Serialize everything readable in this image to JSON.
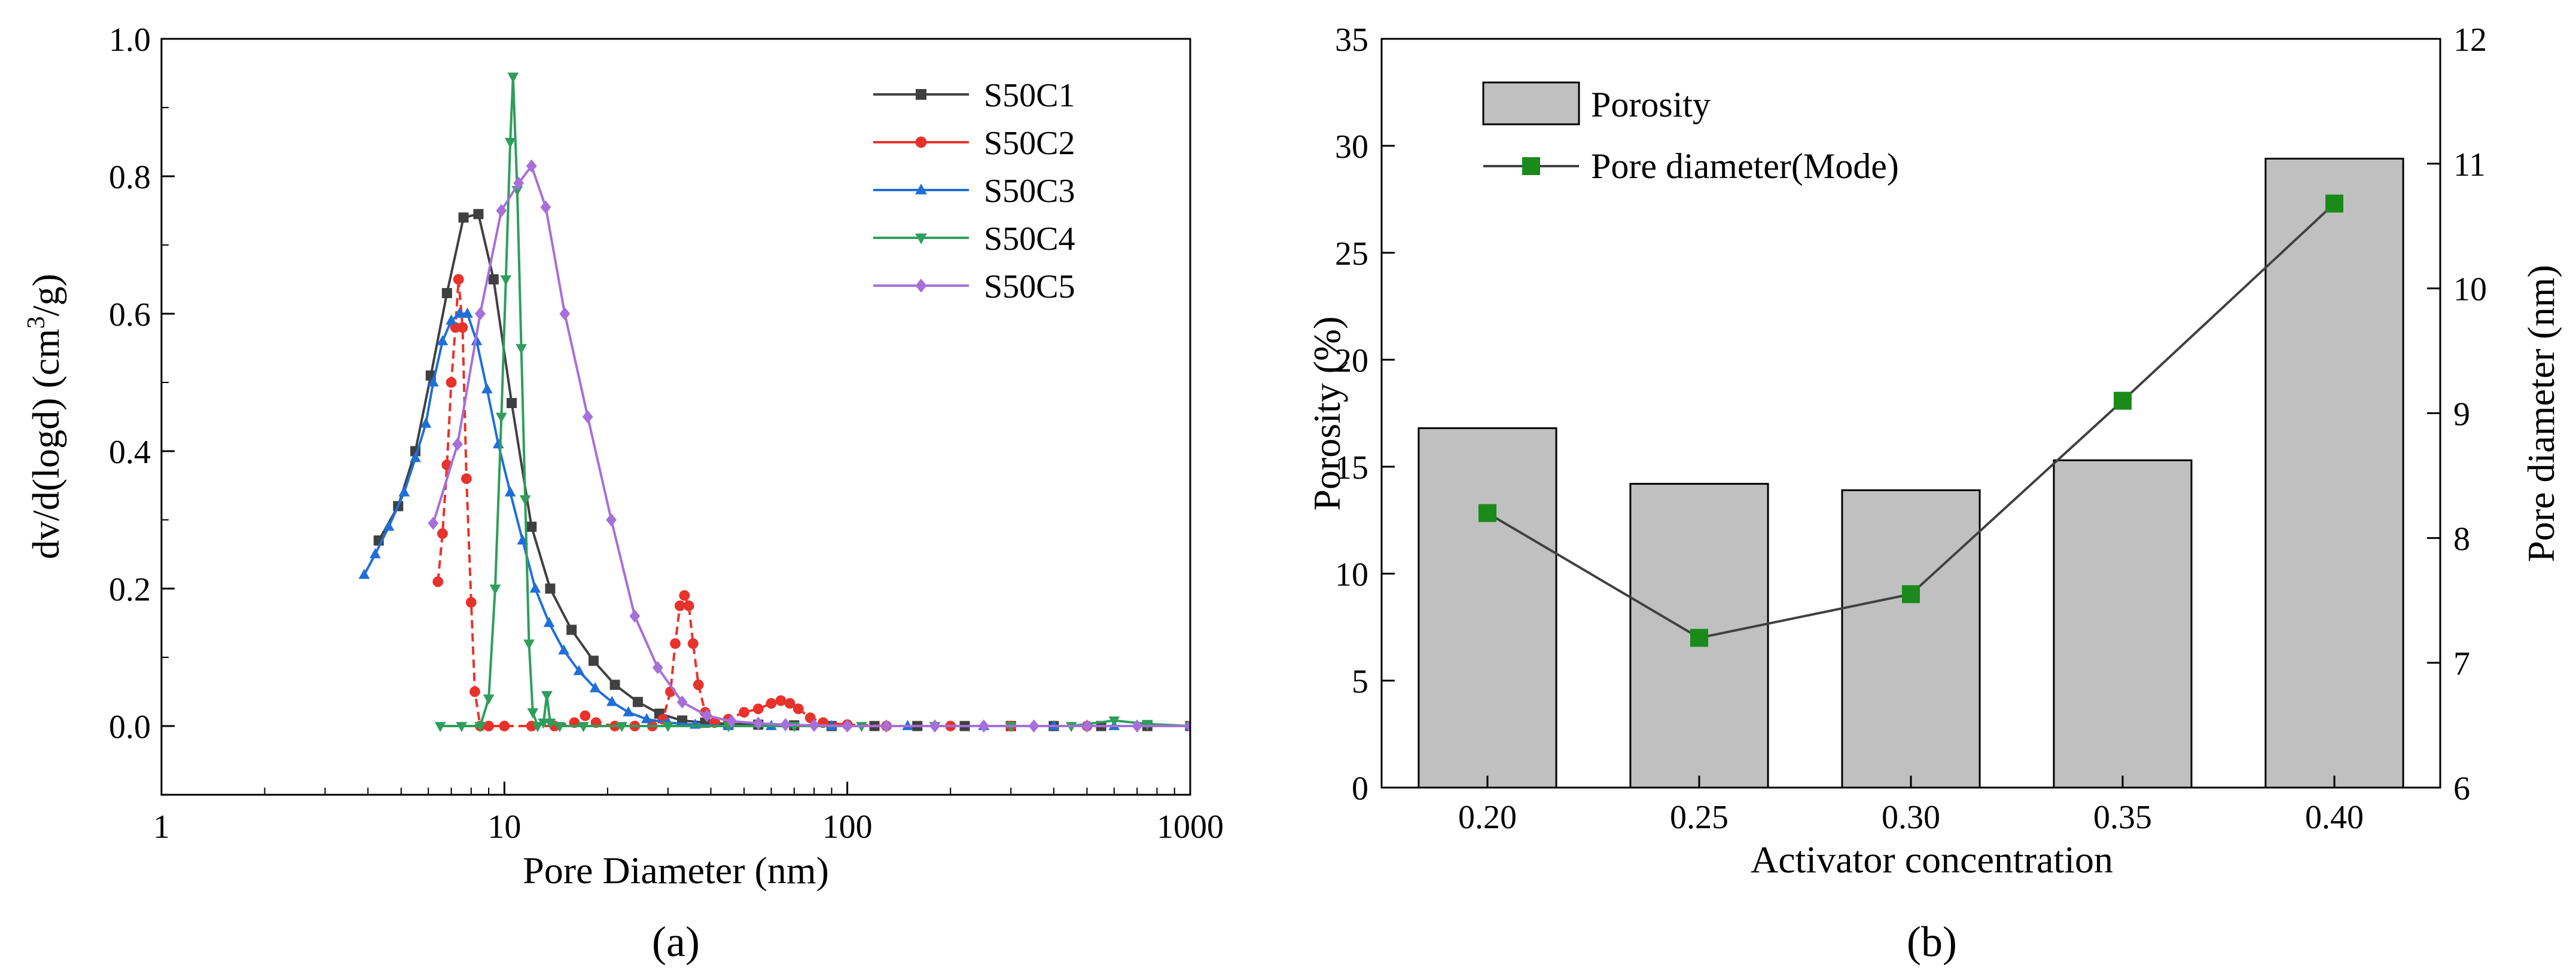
{
  "chart_data": [
    {
      "type": "line",
      "panel_label": "(a)",
      "xlabel": "Pore Diameter (nm)",
      "ylabel": "dv/d(logd) (cm³/g)",
      "xscale": "log",
      "xlim": [
        1,
        1000
      ],
      "ylim": [
        -0.1,
        1.0
      ],
      "xticks": [
        1,
        10,
        100,
        1000
      ],
      "yticks": [
        0.0,
        0.2,
        0.4,
        0.6,
        0.8,
        1.0
      ],
      "legend_position": "top-right",
      "grid": false,
      "series": [
        {
          "name": "S50C1",
          "color": "#404040",
          "marker": "square",
          "points": [
            [
              4.3,
              0.27
            ],
            [
              4.9,
              0.32
            ],
            [
              5.5,
              0.4
            ],
            [
              6.1,
              0.51
            ],
            [
              6.8,
              0.63
            ],
            [
              7.6,
              0.74
            ],
            [
              8.4,
              0.745
            ],
            [
              9.3,
              0.65
            ],
            [
              10.5,
              0.47
            ],
            [
              12.0,
              0.29
            ],
            [
              13.6,
              0.2
            ],
            [
              15.7,
              0.14
            ],
            [
              18.2,
              0.095
            ],
            [
              21.0,
              0.06
            ],
            [
              24.5,
              0.035
            ],
            [
              28.3,
              0.018
            ],
            [
              33.0,
              0.008
            ],
            [
              38.5,
              0.005
            ],
            [
              45.0,
              0.003
            ],
            [
              55.0,
              0.002
            ],
            [
              70.0,
              0.001
            ],
            [
              90.0,
              0.0
            ],
            [
              120.0,
              0.0
            ],
            [
              160.0,
              0.0
            ],
            [
              220.0,
              0.0
            ],
            [
              300.0,
              0.0
            ],
            [
              400.0,
              0.0
            ],
            [
              550.0,
              0.0
            ],
            [
              750.0,
              0.0
            ],
            [
              1000.0,
              0.0
            ]
          ]
        },
        {
          "name": "S50C2",
          "color": "#e8322c",
          "marker": "circle",
          "points": [
            [
              6.4,
              0.21
            ],
            [
              6.6,
              0.28
            ],
            [
              6.8,
              0.38
            ],
            [
              7.0,
              0.5
            ],
            [
              7.2,
              0.58
            ],
            [
              7.35,
              0.65
            ],
            [
              7.55,
              0.58
            ],
            [
              7.75,
              0.36
            ],
            [
              8.0,
              0.18
            ],
            [
              8.2,
              0.05
            ],
            [
              8.5,
              0.0
            ],
            [
              9.0,
              0.0
            ],
            [
              10.0,
              0.0
            ],
            [
              12.0,
              0.0
            ],
            [
              14.0,
              0.0
            ],
            [
              16.0,
              0.005
            ],
            [
              17.2,
              0.015
            ],
            [
              18.5,
              0.005
            ],
            [
              21.0,
              0.0
            ],
            [
              24.0,
              0.0
            ],
            [
              27.0,
              0.0
            ],
            [
              29.0,
              0.01
            ],
            [
              30.5,
              0.05
            ],
            [
              31.5,
              0.12
            ],
            [
              32.5,
              0.175
            ],
            [
              33.5,
              0.19
            ],
            [
              34.5,
              0.175
            ],
            [
              35.5,
              0.12
            ],
            [
              36.8,
              0.06
            ],
            [
              38.5,
              0.02
            ],
            [
              41.0,
              0.005
            ],
            [
              45.0,
              0.01
            ],
            [
              50.0,
              0.02
            ],
            [
              55.0,
              0.025
            ],
            [
              60.0,
              0.033
            ],
            [
              64.0,
              0.037
            ],
            [
              68.0,
              0.033
            ],
            [
              72.0,
              0.025
            ],
            [
              78.0,
              0.012
            ],
            [
              85.0,
              0.005
            ],
            [
              100.0,
              0.002
            ],
            [
              130.0,
              0.0
            ],
            [
              200.0,
              0.0
            ],
            [
              300.0,
              0.0
            ],
            [
              500.0,
              0.0
            ],
            [
              1000.0,
              0.0
            ]
          ]
        },
        {
          "name": "S50C3",
          "color": "#1f6fd8",
          "marker": "triangle-up",
          "points": [
            [
              3.9,
              0.22
            ],
            [
              4.2,
              0.25
            ],
            [
              4.6,
              0.29
            ],
            [
              5.1,
              0.34
            ],
            [
              5.5,
              0.39
            ],
            [
              5.9,
              0.44
            ],
            [
              6.2,
              0.5
            ],
            [
              6.6,
              0.56
            ],
            [
              7.0,
              0.59
            ],
            [
              7.4,
              0.6
            ],
            [
              7.8,
              0.6
            ],
            [
              8.3,
              0.56
            ],
            [
              8.9,
              0.49
            ],
            [
              9.6,
              0.41
            ],
            [
              10.4,
              0.34
            ],
            [
              11.3,
              0.27
            ],
            [
              12.3,
              0.2
            ],
            [
              13.5,
              0.15
            ],
            [
              14.9,
              0.11
            ],
            [
              16.5,
              0.08
            ],
            [
              18.4,
              0.055
            ],
            [
              20.6,
              0.035
            ],
            [
              23.0,
              0.02
            ],
            [
              26.0,
              0.01
            ],
            [
              30.0,
              0.005
            ],
            [
              36.0,
              0.002
            ],
            [
              45.0,
              0.0
            ],
            [
              60.0,
              0.0
            ],
            [
              90.0,
              0.0
            ],
            [
              150.0,
              0.0
            ],
            [
              250.0,
              0.0
            ],
            [
              400.0,
              0.0
            ],
            [
              600.0,
              0.0
            ],
            [
              1000.0,
              0.0
            ]
          ]
        },
        {
          "name": "S50C4",
          "color": "#2e9e5a",
          "marker": "triangle-down",
          "points": [
            [
              6.5,
              0.0
            ],
            [
              7.5,
              0.0
            ],
            [
              8.5,
              0.0
            ],
            [
              9.0,
              0.04
            ],
            [
              9.4,
              0.2
            ],
            [
              9.8,
              0.45
            ],
            [
              10.1,
              0.65
            ],
            [
              10.4,
              0.85
            ],
            [
              10.6,
              0.945
            ],
            [
              10.9,
              0.78
            ],
            [
              11.2,
              0.55
            ],
            [
              11.5,
              0.33
            ],
            [
              11.8,
              0.12
            ],
            [
              12.1,
              0.02
            ],
            [
              12.5,
              0.0
            ],
            [
              13.0,
              0.005
            ],
            [
              13.3,
              0.045
            ],
            [
              13.6,
              0.005
            ],
            [
              14.5,
              0.0
            ],
            [
              17.0,
              0.0
            ],
            [
              22.0,
              0.0
            ],
            [
              30.0,
              0.0
            ],
            [
              45.0,
              0.0
            ],
            [
              70.0,
              0.0
            ],
            [
              110.0,
              0.0
            ],
            [
              180.0,
              0.0
            ],
            [
              300.0,
              0.0
            ],
            [
              450.0,
              0.0
            ],
            [
              600.0,
              0.008
            ],
            [
              750.0,
              0.003
            ],
            [
              1000.0,
              0.0
            ]
          ]
        },
        {
          "name": "S50C5",
          "color": "#a66fd9",
          "marker": "diamond",
          "points": [
            [
              6.2,
              0.295
            ],
            [
              7.3,
              0.41
            ],
            [
              8.5,
              0.6
            ],
            [
              9.8,
              0.75
            ],
            [
              11.0,
              0.79
            ],
            [
              12.0,
              0.815
            ],
            [
              13.2,
              0.755
            ],
            [
              15.0,
              0.6
            ],
            [
              17.5,
              0.45
            ],
            [
              20.5,
              0.3
            ],
            [
              24.0,
              0.16
            ],
            [
              28.0,
              0.085
            ],
            [
              33.0,
              0.035
            ],
            [
              39.0,
              0.015
            ],
            [
              46.0,
              0.007
            ],
            [
              55.0,
              0.004
            ],
            [
              66.0,
              0.002
            ],
            [
              80.0,
              0.001
            ],
            [
              100.0,
              0.0
            ],
            [
              130.0,
              0.0
            ],
            [
              180.0,
              0.0
            ],
            [
              250.0,
              0.0
            ],
            [
              350.0,
              0.0
            ],
            [
              500.0,
              0.0
            ],
            [
              700.0,
              0.0
            ],
            [
              1000.0,
              0.0
            ]
          ]
        }
      ]
    },
    {
      "type": "bar",
      "panel_label": "(b)",
      "xlabel": "Activator concentration",
      "ylabel": "Porosity (%)",
      "y2label": "Pore diameter (nm)",
      "categories": [
        "0.20",
        "0.25",
        "0.30",
        "0.35",
        "0.40"
      ],
      "ylim": [
        0,
        35
      ],
      "yticks": [
        0,
        5,
        10,
        15,
        20,
        25,
        30,
        35
      ],
      "y2lim": [
        6,
        12
      ],
      "y2ticks": [
        6,
        7,
        8,
        9,
        10,
        11,
        12
      ],
      "legend_position": "top-left",
      "grid": false,
      "series": [
        {
          "name": "Porosity",
          "kind": "bar",
          "axis": "left",
          "color": "#c0c0c0",
          "values": [
            16.8,
            14.2,
            13.9,
            15.3,
            29.4
          ]
        },
        {
          "name": "Pore diameter(Mode)",
          "kind": "line",
          "axis": "right",
          "color": "#1a8a1a",
          "line_color": "#404040",
          "marker": "square",
          "values": [
            8.2,
            7.2,
            7.55,
            9.1,
            10.68
          ]
        }
      ]
    }
  ]
}
